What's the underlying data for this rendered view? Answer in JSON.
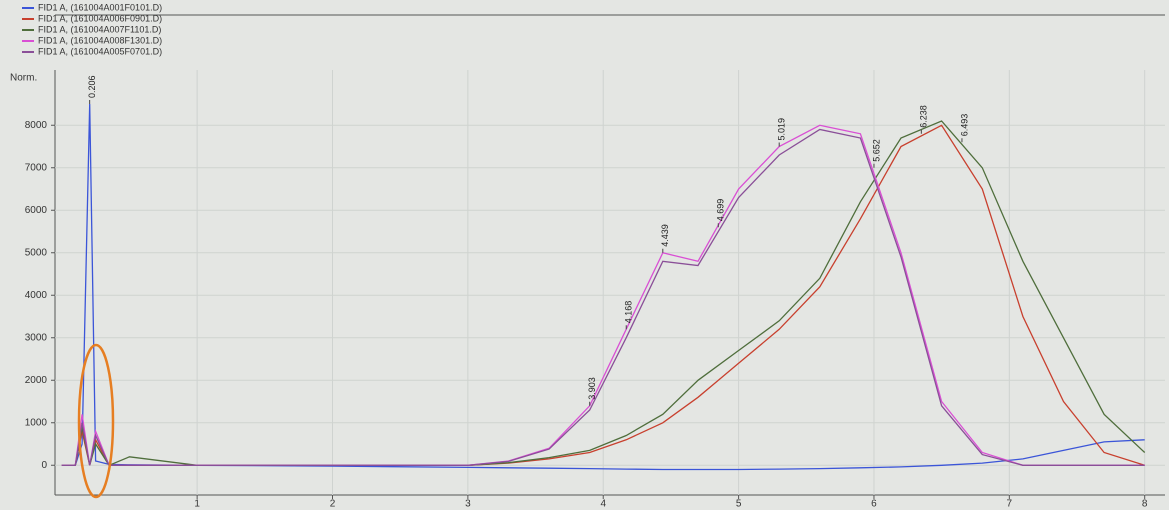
{
  "chart_data": {
    "type": "line",
    "y_label": "Norm.",
    "x": [
      0,
      0.1,
      0.15,
      0.206,
      0.25,
      0.35,
      0.5,
      1,
      2,
      3,
      3.3,
      3.6,
      3.9,
      4.17,
      4.44,
      4.7,
      5,
      5.3,
      5.6,
      5.9,
      6.2,
      6.5,
      6.8,
      7.1,
      7.4,
      7.7,
      8.0
    ],
    "series": [
      {
        "name": "FID1 A, (161004A001F0101.D)",
        "color": "#3b55d8",
        "values": [
          0,
          0,
          500,
          8500,
          100,
          20,
          10,
          0,
          -20,
          -50,
          -60,
          -70,
          -80,
          -90,
          -100,
          -100,
          -100,
          -90,
          -80,
          -60,
          -40,
          0,
          50,
          150,
          350,
          550,
          600
        ]
      },
      {
        "name": "FID1 A, (161004A006F0901.D)",
        "color": "#c8402e",
        "values": [
          0,
          0,
          800,
          0,
          600,
          0,
          0,
          0,
          0,
          0,
          50,
          150,
          300,
          600,
          1000,
          1600,
          2400,
          3200,
          4200,
          5800,
          7500,
          8000,
          6500,
          3500,
          1500,
          300,
          0
        ]
      },
      {
        "name": "FID1 A, (161004A007F1101.D)",
        "color": "#4f6e3c",
        "values": [
          0,
          0,
          900,
          0,
          500,
          0,
          200,
          0,
          0,
          0,
          60,
          180,
          350,
          700,
          1200,
          2000,
          2700,
          3400,
          4400,
          6200,
          7700,
          8100,
          7000,
          4800,
          3000,
          1200,
          300
        ]
      },
      {
        "name": "FID1 A, (161004A008F1301.D)",
        "color": "#d94fd4",
        "values": [
          0,
          0,
          1200,
          0,
          800,
          0,
          0,
          0,
          0,
          0,
          100,
          400,
          1400,
          3200,
          5000,
          4800,
          6500,
          7500,
          8000,
          7800,
          5000,
          1500,
          300,
          0,
          0,
          0,
          0
        ]
      },
      {
        "name": "FID1 A, (161004A005F0701.D)",
        "color": "#8a4f98",
        "values": [
          0,
          0,
          1000,
          0,
          700,
          0,
          0,
          0,
          0,
          0,
          90,
          380,
          1300,
          3000,
          4800,
          4700,
          6300,
          7300,
          7900,
          7700,
          4900,
          1400,
          250,
          0,
          0,
          0,
          0
        ]
      }
    ],
    "xlim": [
      -0.05,
      8.15
    ],
    "xticks": [
      1,
      2,
      3,
      4,
      5,
      6,
      7,
      8
    ],
    "ylim": [
      -700,
      9300
    ],
    "yticks": [
      0,
      1000,
      2000,
      3000,
      4000,
      5000,
      6000,
      7000,
      8000
    ],
    "grid": true,
    "annotations": [
      {
        "text": "0.206",
        "x": 0.206,
        "y": 8500
      },
      {
        "text": "3.903",
        "x": 3.9,
        "y": 1400
      },
      {
        "text": "4.168",
        "x": 4.17,
        "y": 3200
      },
      {
        "text": "4.439",
        "x": 4.44,
        "y": 5000
      },
      {
        "text": "4.699",
        "x": 4.85,
        "y": 5600
      },
      {
        "text": "5.019",
        "x": 5.3,
        "y": 7500
      },
      {
        "text": "5.652",
        "x": 6.0,
        "y": 7000
      },
      {
        "text": "6.238",
        "x": 6.35,
        "y": 7800
      },
      {
        "text": "6.493",
        "x": 6.65,
        "y": 7600
      }
    ]
  }
}
